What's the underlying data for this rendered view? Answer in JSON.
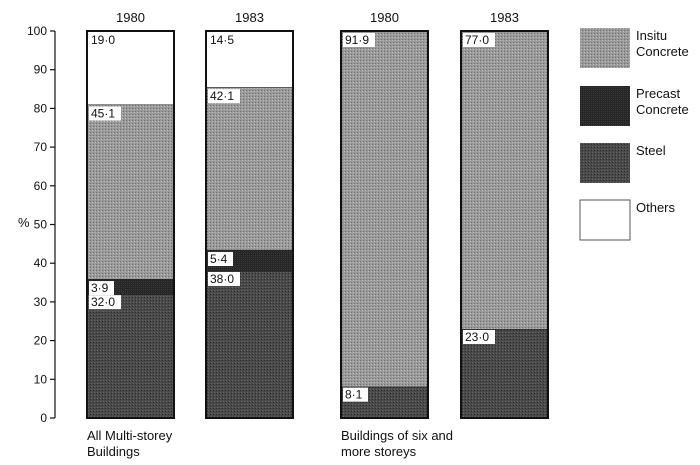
{
  "chart_data": {
    "type": "bar",
    "stacked": true,
    "ylabel": "%",
    "ylim": [
      0,
      100
    ],
    "yticks": [
      "0",
      "10",
      "20",
      "30",
      "40",
      "50",
      "60",
      "70",
      "80",
      "90",
      "100"
    ],
    "groups": [
      {
        "label_lines": [
          "All Multi-storey",
          "Buildings"
        ],
        "bars": [
          0,
          1
        ]
      },
      {
        "label_lines": [
          "Buildings of six and",
          "more storeys"
        ],
        "bars": [
          2,
          3
        ]
      }
    ],
    "categories": [
      "1980",
      "1983",
      "1980",
      "1983"
    ],
    "series": [
      {
        "key": "steel",
        "name": "Steel",
        "values": [
          32.0,
          38.0,
          8.1,
          23.0
        ],
        "labels": [
          "32·0",
          "38·0",
          "8·1",
          "23·0"
        ],
        "color": "#3d3d3d"
      },
      {
        "key": "precast",
        "name": "Precast Concrete",
        "name_lines": [
          "Precast",
          "Concrete"
        ],
        "values": [
          3.9,
          5.4,
          0,
          0
        ],
        "labels": [
          "3·9",
          "5·4",
          "",
          ""
        ],
        "color": "#222222"
      },
      {
        "key": "insitu",
        "name": "Insitu Concrete",
        "name_lines": [
          "Insitu",
          "Concrete"
        ],
        "values": [
          45.1,
          42.1,
          91.9,
          77.0
        ],
        "labels": [
          "45·1",
          "42·1",
          "91·9",
          "77·0"
        ],
        "color": "#8f8f8f"
      },
      {
        "key": "others",
        "name": "Others",
        "name_lines": [
          "Others"
        ],
        "values": [
          19.0,
          14.5,
          0,
          0
        ],
        "labels": [
          "19·0",
          "14·5",
          "",
          ""
        ],
        "color": "#ffffff"
      }
    ],
    "legend": {
      "position": "right",
      "order": [
        "insitu",
        "precast",
        "steel",
        "others"
      ]
    },
    "grid": false
  }
}
